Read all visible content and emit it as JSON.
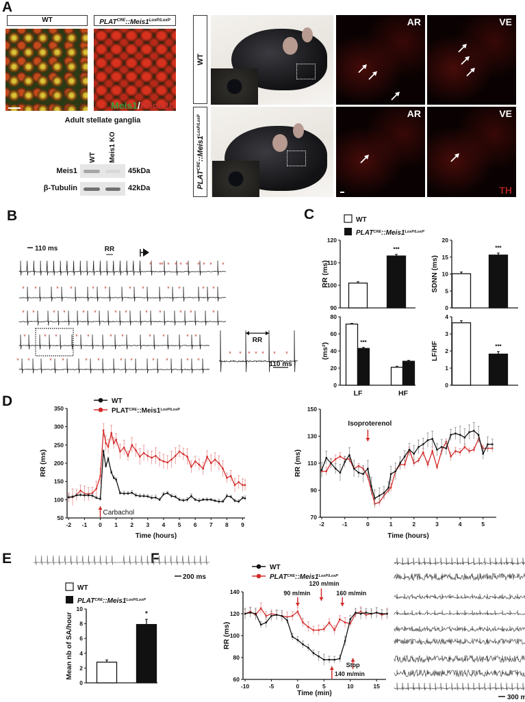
{
  "panel_labels": {
    "a": "A",
    "b": "B",
    "c": "C",
    "d": "D",
    "e": "E",
    "f": "F"
  },
  "genotypes": {
    "wt": "WT",
    "ko": {
      "base": "PLAT",
      "sup1": "CRE",
      "mid": "::Meis1",
      "sup2": "LoxP/LoxP"
    }
  },
  "colors": {
    "wt": "#111111",
    "ko": "#d42a2a",
    "ko_error": "#e88a8a",
    "wt_error": "#8a8a8a",
    "meis1": "#3a9a3a",
    "phox2b": "#c0302c",
    "asterisk": "#c0392b"
  },
  "panel_a": {
    "stain": {
      "meis1": "Meis1",
      "sep": "/",
      "phox2b": "Phox2b"
    },
    "blot_title": "Adult stellate ganglia",
    "lanes": [
      "WT",
      "Meis1 KO"
    ],
    "bands": [
      {
        "name": "Meis1",
        "size": "45kDa",
        "levels": [
          0.55,
          0.08
        ]
      },
      {
        "name": "β-Tubulin",
        "size": "42kDa",
        "levels": [
          0.75,
          0.7
        ]
      }
    ],
    "regions": [
      "AR",
      "VE"
    ],
    "th_label": "TH"
  },
  "panel_b": {
    "scale": "110 ms",
    "rr": "RR",
    "marker": "*",
    "inset_rr": "RR",
    "inset_scale": "110 ms"
  },
  "panel_e": {
    "scale": "200 ms"
  },
  "panel_f": {
    "scale": "300 ms"
  },
  "chart_data": [
    {
      "id": "c-rr",
      "type": "bar",
      "ylabel": "RR (ms)",
      "ylim": [
        90,
        120
      ],
      "yticks": [
        90,
        100,
        110,
        120
      ],
      "bars": [
        {
          "group": "wt",
          "value": 101,
          "error": 0.6,
          "sig": ""
        },
        {
          "group": "ko",
          "value": 113,
          "error": 0.7,
          "sig": "***"
        }
      ]
    },
    {
      "id": "c-sdnn",
      "type": "bar",
      "ylabel": "SDNN (ms)",
      "ylim": [
        0,
        20
      ],
      "yticks": [
        0,
        5,
        10,
        15,
        20
      ],
      "bars": [
        {
          "group": "wt",
          "value": 10.1,
          "error": 0.5,
          "sig": ""
        },
        {
          "group": "ko",
          "value": 15.6,
          "error": 0.6,
          "sig": "***"
        }
      ]
    },
    {
      "id": "c-power",
      "type": "bar",
      "ylabel": "(ms²)",
      "ylim": [
        0,
        80
      ],
      "yticks": [
        0,
        20,
        40,
        60,
        80
      ],
      "categories": [
        "LF",
        "HF"
      ],
      "bars": [
        {
          "category": "LF",
          "group": "wt",
          "value": 71.5,
          "error": 0.8,
          "sig": ""
        },
        {
          "category": "LF",
          "group": "ko",
          "value": 43,
          "error": 1.2,
          "sig": "***"
        },
        {
          "category": "HF",
          "group": "wt",
          "value": 21,
          "error": 1.2,
          "sig": ""
        },
        {
          "category": "HF",
          "group": "ko",
          "value": 28,
          "error": 1.1,
          "sig": ""
        }
      ]
    },
    {
      "id": "c-lfhf",
      "type": "bar",
      "ylabel": "LF/HF",
      "ylim": [
        0,
        4
      ],
      "yticks": [
        0,
        1,
        2,
        3,
        4
      ],
      "bars": [
        {
          "group": "wt",
          "value": 3.65,
          "error": 0.12,
          "sig": ""
        },
        {
          "group": "ko",
          "value": 1.82,
          "error": 0.15,
          "sig": "***"
        }
      ]
    },
    {
      "id": "d-carbachol",
      "type": "line",
      "xlabel": "Time (hours)",
      "ylabel": "RR (ms)",
      "xlim": [
        -2.1,
        9.15
      ],
      "ylim": [
        50,
        350
      ],
      "xticks": [
        -2,
        -1,
        0,
        1,
        2,
        3,
        4,
        5,
        6,
        7,
        8,
        9
      ],
      "yticks": [
        50,
        100,
        150,
        200,
        250,
        300,
        350
      ],
      "annotation": {
        "label": "Carbachol",
        "x": 0,
        "direction": "up"
      },
      "x": [
        -2,
        -1.75,
        -1.5,
        -1.25,
        -1,
        -0.75,
        -0.5,
        -0.25,
        0,
        0.2,
        0.35,
        0.5,
        0.7,
        0.85,
        1,
        1.25,
        1.5,
        1.75,
        2,
        2.25,
        2.5,
        2.75,
        3,
        3.25,
        3.5,
        3.75,
        4,
        4.25,
        4.5,
        4.75,
        5,
        5.25,
        5.5,
        5.75,
        6,
        6.25,
        6.5,
        6.75,
        7,
        7.25,
        7.5,
        7.75,
        8,
        8.25,
        8.5,
        8.75,
        9,
        9.15
      ],
      "series": [
        {
          "key": "wt",
          "error": 5,
          "y": [
            107,
            108,
            112,
            113,
            112,
            112,
            111,
            105,
            102,
            233,
            192,
            212,
            175,
            160,
            155,
            118,
            117,
            117,
            119,
            112,
            110,
            110,
            109,
            105,
            106,
            100,
            115,
            118,
            110,
            108,
            100,
            98,
            100,
            110,
            100,
            97,
            100,
            100,
            100,
            97,
            95,
            95,
            110,
            108,
            97,
            95,
            105,
            104
          ]
        },
        {
          "key": "ko",
          "error": 18,
          "y": [
            106,
            107,
            113,
            125,
            117,
            115,
            118,
            130,
            165,
            290,
            255,
            245,
            283,
            255,
            265,
            232,
            243,
            220,
            250,
            235,
            218,
            228,
            220,
            215,
            220,
            210,
            205,
            202,
            210,
            220,
            232,
            225,
            218,
            190,
            205,
            196,
            185,
            218,
            200,
            210,
            200,
            185,
            160,
            165,
            140,
            148,
            140,
            140
          ]
        }
      ]
    },
    {
      "id": "d-isoproterenol",
      "type": "line",
      "xlabel": "Time (hours)",
      "ylabel": "RR (ms)",
      "xlim": [
        -2.06,
        5.57
      ],
      "ylim": [
        70,
        150
      ],
      "xticks": [
        -2,
        -1,
        0,
        1,
        2,
        3,
        4,
        5
      ],
      "yticks": [
        70,
        90,
        110,
        130,
        150
      ],
      "annotation": {
        "label": "Isoproterenol",
        "x": 0,
        "direction": "down"
      },
      "x": [
        -2,
        -1.8,
        -1.6,
        -1.4,
        -1.2,
        -1,
        -0.8,
        -0.6,
        -0.4,
        -0.2,
        0,
        0.15,
        0.3,
        0.5,
        0.7,
        0.9,
        1,
        1.2,
        1.4,
        1.6,
        1.8,
        2,
        2.2,
        2.4,
        2.6,
        2.8,
        3,
        3.2,
        3.4,
        3.6,
        3.8,
        4,
        4.2,
        4.4,
        4.6,
        4.8,
        5,
        5.2,
        5.4
      ],
      "series": [
        {
          "key": "wt",
          "error": 5,
          "y": [
            105,
            114,
            110,
            106,
            103,
            111,
            116,
            106,
            103,
            102,
            106,
            93,
            84,
            86,
            88,
            92,
            102,
            104,
            110,
            115,
            120,
            117,
            122,
            124,
            127,
            128,
            120,
            122,
            121,
            131,
            132,
            131,
            129,
            133,
            134,
            131,
            117,
            124,
            124
          ]
        },
        {
          "key": "ko",
          "error": 2.5,
          "y": [
            104,
            104,
            110,
            113,
            115,
            113,
            113,
            106,
            108,
            106,
            100,
            90,
            80,
            81,
            86,
            90,
            92,
            104,
            109,
            109,
            120,
            110,
            112,
            118,
            109,
            119,
            107,
            119,
            126,
            115,
            119,
            118,
            122,
            119,
            120,
            128,
            121,
            121,
            121
          ]
        }
      ]
    },
    {
      "id": "e-sa",
      "type": "bar",
      "ylabel": "Mean nb of SA/hour",
      "ylim": [
        0,
        10
      ],
      "yticks": [
        0,
        2,
        4,
        6,
        8,
        10
      ],
      "bars": [
        {
          "group": "wt",
          "value": 2.8,
          "error": 0.3,
          "sig": ""
        },
        {
          "group": "ko",
          "value": 7.9,
          "error": 0.7,
          "sig": "*"
        }
      ]
    },
    {
      "id": "f-exercise",
      "type": "line",
      "xlabel": "Time (min)",
      "ylabel": "RR (ms)",
      "xlim": [
        -10.4,
        16.8
      ],
      "ylim": [
        60,
        140
      ],
      "xticks": [
        -10,
        -5,
        0,
        5,
        10,
        15
      ],
      "yticks": [
        60,
        80,
        100,
        120,
        140
      ],
      "annotations": [
        {
          "label": "90 m/min",
          "x": 0,
          "direction": "down"
        },
        {
          "label": "120 m/min",
          "x": 4.5,
          "direction": "down"
        },
        {
          "label": "160 m/min",
          "x": 8.5,
          "direction": "down"
        },
        {
          "label": "140 m/min",
          "x": 6.5,
          "direction": "up"
        },
        {
          "label": "Stop",
          "x": 10.5,
          "direction": "up"
        }
      ],
      "x": [
        -10,
        -9,
        -8,
        -7,
        -6,
        -5,
        -4,
        -3,
        -2,
        -1,
        0,
        1,
        2,
        3,
        4,
        5,
        6,
        7,
        8,
        9,
        10,
        11,
        12,
        13,
        14,
        15,
        16,
        17
      ],
      "series": [
        {
          "key": "wt",
          "error": 4,
          "y": [
            120,
            121,
            120,
            110,
            112,
            118,
            119,
            118,
            114,
            99,
            96,
            92,
            89,
            84,
            81,
            78,
            78,
            78,
            79,
            95,
            115,
            121,
            120,
            121,
            120,
            121,
            120,
            120
          ]
        },
        {
          "key": "ko",
          "error": 4,
          "y": [
            120,
            122,
            119,
            125,
            118,
            120,
            119,
            118,
            117,
            118,
            122,
            112,
            108,
            105,
            105,
            106,
            112,
            105,
            115,
            112,
            111,
            120,
            122,
            119,
            120,
            121,
            119,
            120
          ]
        }
      ]
    }
  ]
}
